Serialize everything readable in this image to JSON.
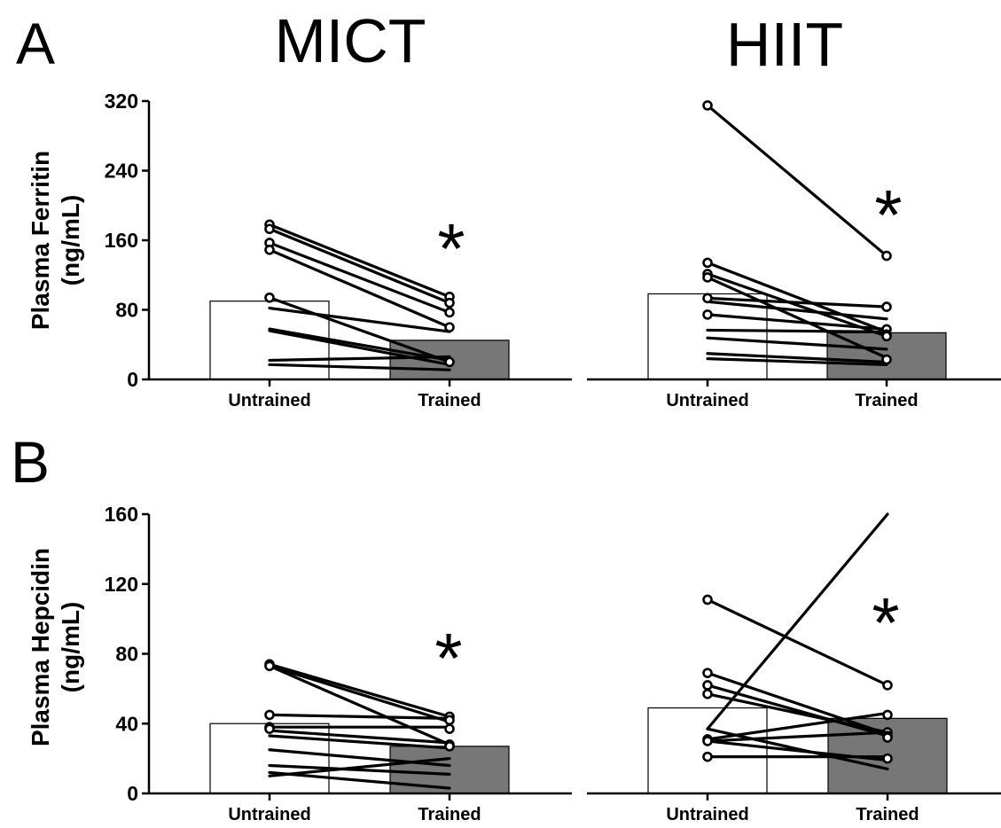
{
  "figure": {
    "panel_letters": [
      "A",
      "B"
    ],
    "column_titles": [
      "MICT",
      "HIIT"
    ],
    "significance_mark": "*"
  },
  "chart_data": [
    {
      "type": "bar",
      "panel": "A",
      "title": "MICT",
      "ylabel": "Plasma Ferritin (ng/mL)",
      "ylabel_lines": [
        "Plasma Ferritin",
        "(ng/mL)"
      ],
      "categories": [
        "Untrained",
        "Trained"
      ],
      "ylim": [
        0,
        320
      ],
      "yticks": [
        0,
        80,
        160,
        240,
        320
      ],
      "bar_colors": [
        "#ffffff",
        "#777777"
      ],
      "bar_values": [
        90,
        45
      ],
      "paired_lines": [
        [
          178,
          95
        ],
        [
          173,
          88
        ],
        [
          157,
          77
        ],
        [
          149,
          60
        ],
        [
          94,
          20
        ],
        [
          82,
          55
        ],
        [
          58,
          22
        ],
        [
          56,
          17
        ],
        [
          22,
          26
        ],
        [
          17,
          11
        ]
      ],
      "untrained_markers": [
        178,
        173,
        157,
        149,
        94
      ],
      "trained_markers": [
        95,
        88,
        77,
        60,
        20
      ],
      "significant": true
    },
    {
      "type": "bar",
      "panel": "A",
      "title": "HIIT",
      "ylabel": "",
      "categories": [
        "Untrained",
        "Trained"
      ],
      "ylim": [
        0,
        320
      ],
      "yticks": [
        0,
        80,
        160,
        240,
        320
      ],
      "bar_colors": [
        "#ffffff",
        "#777777"
      ],
      "bar_values": [
        99,
        54
      ],
      "paired_lines": [
        [
          317,
          143
        ],
        [
          135,
          55
        ],
        [
          122,
          50
        ],
        [
          118,
          25
        ],
        [
          94,
          84
        ],
        [
          75,
          58
        ],
        [
          90,
          70
        ],
        [
          57,
          55
        ],
        [
          48,
          35
        ],
        [
          30,
          20
        ],
        [
          24,
          17
        ]
      ],
      "untrained_markers": [
        317,
        135,
        122,
        118,
        94,
        75
      ],
      "trained_markers": [
        143,
        84,
        58,
        52,
        50,
        23
      ],
      "significant": true
    },
    {
      "type": "bar",
      "panel": "B",
      "title": "",
      "ylabel": "Plasma Hepcidin (ng/mL)",
      "ylabel_lines": [
        "Plasma Hepcidin",
        "(ng/mL)"
      ],
      "categories": [
        "Untrained",
        "Trained"
      ],
      "ylim": [
        0,
        160
      ],
      "yticks": [
        0,
        40,
        80,
        120,
        160
      ],
      "bar_colors": [
        "#ffffff",
        "#777777"
      ],
      "bar_values": [
        40,
        27
      ],
      "paired_lines": [
        [
          74,
          44
        ],
        [
          73,
          41
        ],
        [
          73,
          28
        ],
        [
          45,
          43
        ],
        [
          38,
          38
        ],
        [
          36,
          29
        ],
        [
          33,
          26
        ],
        [
          25,
          16
        ],
        [
          16,
          11
        ],
        [
          10,
          20
        ],
        [
          12,
          3
        ]
      ],
      "untrained_markers": [
        74,
        73,
        45,
        38,
        37
      ],
      "trained_markers": [
        44,
        42,
        37,
        28,
        27
      ],
      "significant": true
    },
    {
      "type": "bar",
      "panel": "B",
      "title": "",
      "ylabel": "",
      "categories": [
        "Untrained",
        "Trained"
      ],
      "ylim": [
        0,
        160
      ],
      "yticks": [
        0,
        40,
        80,
        120,
        160
      ],
      "bar_colors": [
        "#ffffff",
        "#777777"
      ],
      "bar_values": [
        49,
        43
      ],
      "paired_lines": [
        [
          111,
          62
        ],
        [
          69,
          34
        ],
        [
          62,
          33
        ],
        [
          57,
          35
        ],
        [
          37,
          160
        ],
        [
          31,
          46
        ],
        [
          30,
          35
        ],
        [
          30,
          19
        ],
        [
          21,
          21
        ],
        [
          37,
          14
        ]
      ],
      "untrained_markers": [
        111,
        69,
        62,
        57,
        31,
        30,
        21
      ],
      "trained_markers": [
        62,
        45,
        35,
        33,
        32,
        20
      ],
      "significant": true
    }
  ]
}
